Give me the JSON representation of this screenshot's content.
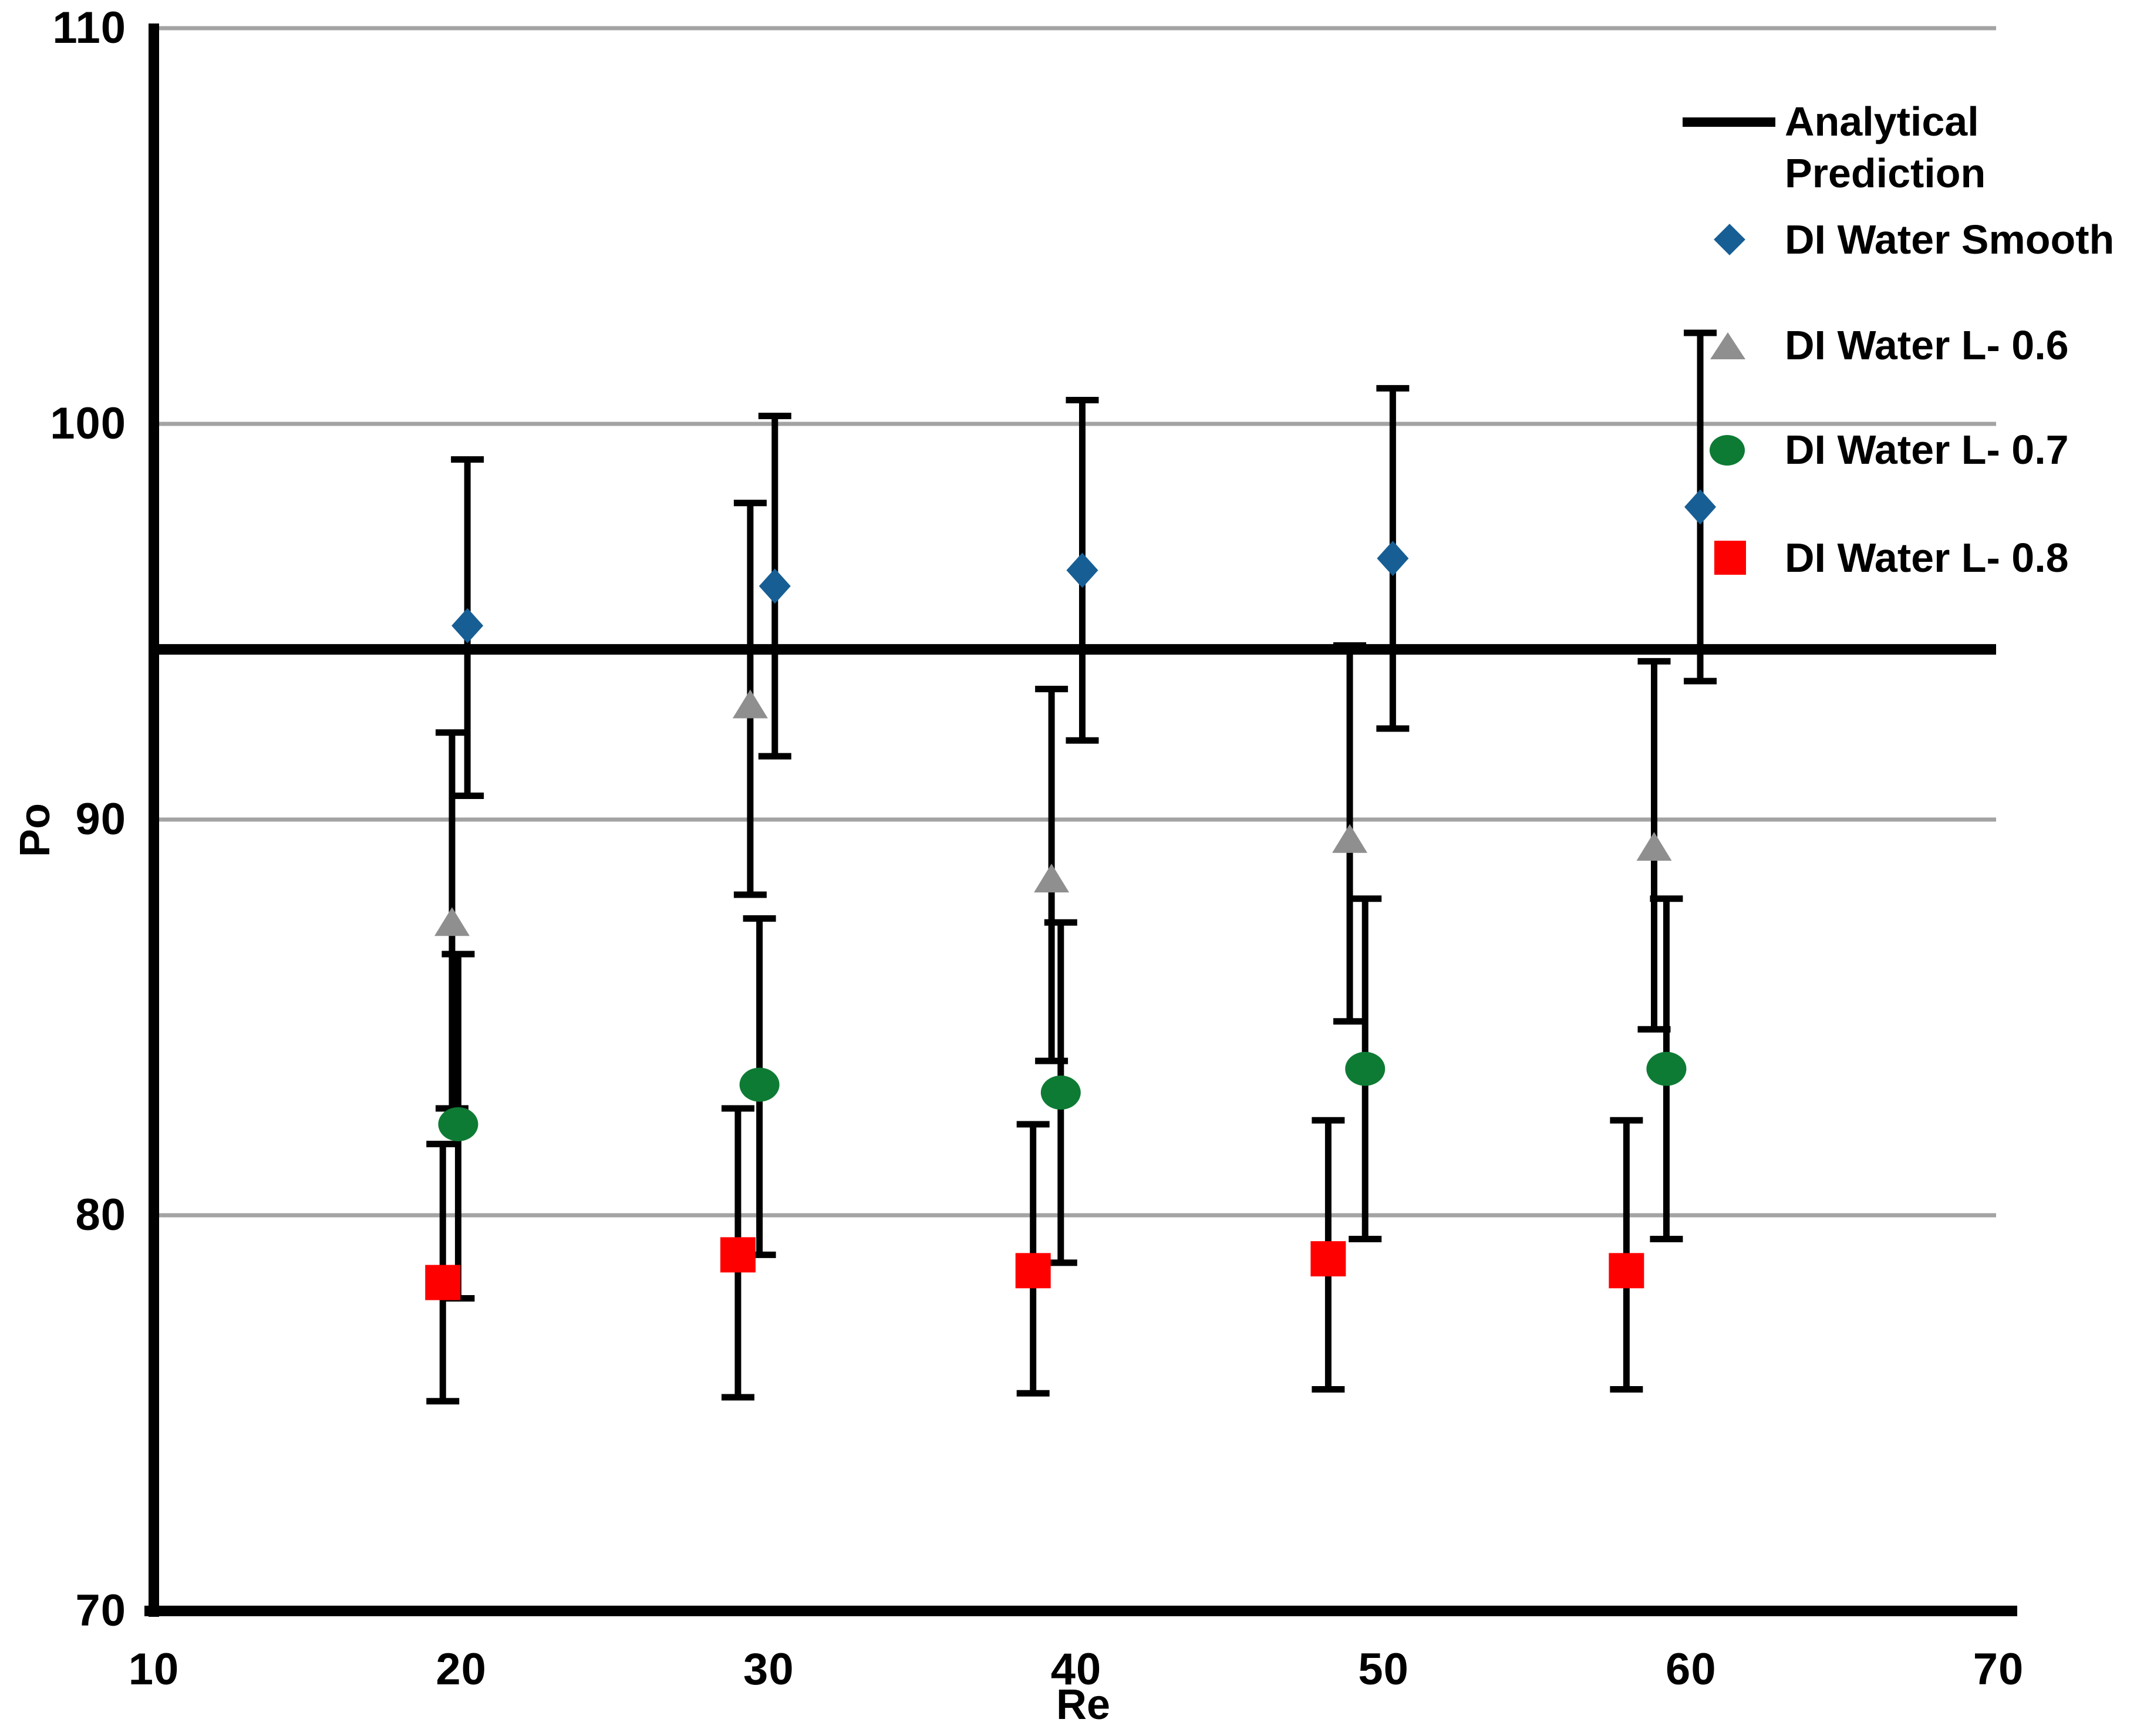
{
  "chart_data": {
    "type": "scatter",
    "title": "",
    "xlabel": "Re",
    "ylabel": "Po",
    "xlim": [
      10,
      70
    ],
    "ylim": [
      70,
      110
    ],
    "x_ticks": [
      10,
      20,
      30,
      40,
      50,
      60,
      70
    ],
    "y_ticks": [
      110,
      100,
      90,
      80,
      70
    ],
    "gridlines_y": [
      110,
      100,
      90,
      80
    ],
    "grid_on": true,
    "legend_position": "top-right-inside",
    "analytical_prediction": 94.3,
    "colors": {
      "axis": "#000000",
      "grid": "#A3A3A3",
      "analytical": "#000000",
      "error_bar": "#000000"
    },
    "series": [
      {
        "name": "DI Water Smooth",
        "marker": "diamond",
        "color": "#175E94",
        "points": [
          {
            "x": 20.2,
            "y": 94.9,
            "y_hi": 99.1,
            "y_lo": 90.6
          },
          {
            "x": 30.2,
            "y": 95.9,
            "y_hi": 100.2,
            "y_lo": 91.6
          },
          {
            "x": 40.2,
            "y": 96.3,
            "y_hi": 100.6,
            "y_lo": 92.0
          },
          {
            "x": 50.3,
            "y": 96.6,
            "y_hi": 100.9,
            "y_lo": 92.3
          },
          {
            "x": 60.3,
            "y": 97.9,
            "y_hi": 102.3,
            "y_lo": 93.5
          }
        ]
      },
      {
        "name": "DI Water L- 0.6",
        "marker": "triangle",
        "color": "#8F8F8F",
        "points": [
          {
            "x": 19.7,
            "y": 87.4,
            "y_hi": 92.2,
            "y_lo": 82.7
          },
          {
            "x": 29.4,
            "y": 92.9,
            "y_hi": 98.0,
            "y_lo": 88.1
          },
          {
            "x": 39.2,
            "y": 88.5,
            "y_hi": 93.3,
            "y_lo": 83.9
          },
          {
            "x": 48.9,
            "y": 89.5,
            "y_hi": 94.4,
            "y_lo": 84.9
          },
          {
            "x": 58.8,
            "y": 89.3,
            "y_hi": 94.0,
            "y_lo": 84.7
          }
        ]
      },
      {
        "name": "DI Water L- 0.7",
        "marker": "circle",
        "color": "#0E7B34",
        "points": [
          {
            "x": 19.9,
            "y": 82.3,
            "y_hi": 86.6,
            "y_lo": 77.9
          },
          {
            "x": 29.7,
            "y": 83.3,
            "y_hi": 87.5,
            "y_lo": 79.0
          },
          {
            "x": 39.5,
            "y": 83.1,
            "y_hi": 87.4,
            "y_lo": 78.8
          },
          {
            "x": 49.4,
            "y": 83.7,
            "y_hi": 88.0,
            "y_lo": 79.4
          },
          {
            "x": 59.2,
            "y": 83.7,
            "y_hi": 88.0,
            "y_lo": 79.4
          }
        ]
      },
      {
        "name": "DI Water L- 0.8",
        "marker": "square",
        "color": "#FF0000",
        "points": [
          {
            "x": 19.4,
            "y": 78.3,
            "y_hi": 81.8,
            "y_lo": 75.3
          },
          {
            "x": 29.0,
            "y": 79.0,
            "y_hi": 82.7,
            "y_lo": 75.4
          },
          {
            "x": 38.6,
            "y": 78.6,
            "y_hi": 82.3,
            "y_lo": 75.5
          },
          {
            "x": 48.2,
            "y": 78.9,
            "y_hi": 82.4,
            "y_lo": 75.6
          },
          {
            "x": 57.9,
            "y": 78.6,
            "y_hi": 82.4,
            "y_lo": 75.6
          }
        ]
      }
    ]
  },
  "legend": {
    "items": [
      {
        "id": "analytical-prediction",
        "swatch": "line",
        "line1": "Analytical",
        "line2": "Prediction"
      },
      {
        "id": "di-water-smooth",
        "swatch": "diamond",
        "label": "DI Water Smooth"
      },
      {
        "id": "di-water-l-0-6",
        "swatch": "triangle",
        "label": "DI Water L- 0.6"
      },
      {
        "id": "di-water-l-0-7",
        "swatch": "circle",
        "label": "DI Water L- 0.7"
      },
      {
        "id": "di-water-l-0-8",
        "swatch": "square",
        "label": "DI Water L- 0.8"
      }
    ]
  }
}
